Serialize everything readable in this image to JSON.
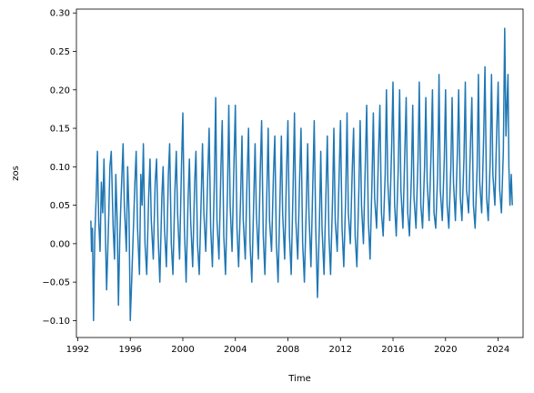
{
  "chart_data": {
    "type": "line",
    "title": "",
    "xlabel": "Time",
    "ylabel": "zos",
    "xlim": [
      1991.9,
      2025.9
    ],
    "ylim": [
      -0.122,
      0.305
    ],
    "grid": false,
    "x_ticks": [
      1992,
      1996,
      2000,
      2004,
      2008,
      2012,
      2016,
      2020,
      2024
    ],
    "y_ticks": [
      -0.1,
      -0.05,
      0.0,
      0.05,
      0.1,
      0.15,
      0.2,
      0.25,
      0.3
    ],
    "x_tick_labels": [
      "1992",
      "1996",
      "2000",
      "2004",
      "2008",
      "2012",
      "2016",
      "2020",
      "2024"
    ],
    "y_tick_labels": [
      "−0.10",
      "−0.05",
      "0.00",
      "0.05",
      "0.10",
      "0.15",
      "0.20",
      "0.25",
      "0.30"
    ],
    "colors": {
      "series": "#1f77b4"
    },
    "series": [
      {
        "x": [
          1993.0,
          1993.05,
          1993.12,
          1993.2,
          1993.3,
          1993.4,
          1993.5,
          1993.6,
          1993.7,
          1993.8,
          1993.9,
          1994.0,
          1994.12,
          1994.2,
          1994.35,
          1994.45,
          1994.55,
          1994.7,
          1994.8,
          1994.9,
          1995.0,
          1995.1,
          1995.2,
          1995.3,
          1995.45,
          1995.55,
          1995.7,
          1995.8,
          1995.9,
          1996.0,
          1996.1,
          1996.2,
          1996.35,
          1996.45,
          1996.55,
          1996.7,
          1996.8,
          1996.9,
          1997.0,
          1997.12,
          1997.25,
          1997.4,
          1997.5,
          1997.6,
          1997.75,
          1997.9,
          1998.0,
          1998.12,
          1998.25,
          1998.4,
          1998.5,
          1998.6,
          1998.75,
          1998.9,
          1999.0,
          1999.12,
          1999.25,
          1999.4,
          1999.5,
          1999.6,
          1999.75,
          1999.9,
          2000.0,
          2000.12,
          2000.25,
          2000.4,
          2000.5,
          2000.6,
          2000.75,
          2000.9,
          2001.0,
          2001.12,
          2001.25,
          2001.4,
          2001.5,
          2001.6,
          2001.75,
          2001.9,
          2002.0,
          2002.12,
          2002.25,
          2002.4,
          2002.5,
          2002.6,
          2002.75,
          2002.9,
          2003.0,
          2003.12,
          2003.25,
          2003.4,
          2003.5,
          2003.6,
          2003.75,
          2003.9,
          2004.0,
          2004.12,
          2004.25,
          2004.4,
          2004.5,
          2004.6,
          2004.75,
          2004.9,
          2005.0,
          2005.12,
          2005.25,
          2005.4,
          2005.5,
          2005.6,
          2005.75,
          2005.9,
          2006.0,
          2006.12,
          2006.25,
          2006.4,
          2006.5,
          2006.6,
          2006.75,
          2006.9,
          2007.0,
          2007.12,
          2007.25,
          2007.4,
          2007.5,
          2007.6,
          2007.75,
          2007.9,
          2008.0,
          2008.12,
          2008.25,
          2008.4,
          2008.5,
          2008.6,
          2008.75,
          2008.9,
          2009.0,
          2009.12,
          2009.25,
          2009.4,
          2009.5,
          2009.6,
          2009.75,
          2009.9,
          2010.0,
          2010.12,
          2010.25,
          2010.4,
          2010.5,
          2010.6,
          2010.75,
          2010.9,
          2011.0,
          2011.12,
          2011.25,
          2011.4,
          2011.5,
          2011.6,
          2011.75,
          2011.9,
          2012.0,
          2012.12,
          2012.25,
          2012.4,
          2012.5,
          2012.6,
          2012.75,
          2012.9,
          2013.0,
          2013.12,
          2013.25,
          2013.4,
          2013.5,
          2013.6,
          2013.75,
          2013.9,
          2014.0,
          2014.12,
          2014.25,
          2014.4,
          2014.5,
          2014.6,
          2014.75,
          2014.9,
          2015.0,
          2015.12,
          2015.25,
          2015.4,
          2015.5,
          2015.6,
          2015.75,
          2015.9,
          2016.0,
          2016.12,
          2016.25,
          2016.4,
          2016.5,
          2016.6,
          2016.75,
          2016.9,
          2017.0,
          2017.12,
          2017.25,
          2017.4,
          2017.5,
          2017.6,
          2017.75,
          2017.9,
          2018.0,
          2018.12,
          2018.25,
          2018.4,
          2018.5,
          2018.6,
          2018.75,
          2018.9,
          2019.0,
          2019.12,
          2019.25,
          2019.4,
          2019.5,
          2019.6,
          2019.75,
          2019.9,
          2020.0,
          2020.12,
          2020.25,
          2020.4,
          2020.5,
          2020.6,
          2020.75,
          2020.9,
          2021.0,
          2021.12,
          2021.25,
          2021.4,
          2021.5,
          2021.6,
          2021.75,
          2021.9,
          2022.0,
          2022.12,
          2022.25,
          2022.4,
          2022.5,
          2022.6,
          2022.75,
          2022.9,
          2023.0,
          2023.12,
          2023.25,
          2023.4,
          2023.5,
          2023.6,
          2023.75,
          2023.9,
          2024.0,
          2024.12,
          2024.25,
          2024.4,
          2024.5,
          2024.6,
          2024.75,
          2024.82,
          2024.9,
          2025.0,
          2025.08
        ],
        "y": [
          0.03,
          -0.01,
          0.02,
          -0.1,
          0.01,
          0.06,
          0.12,
          0.03,
          -0.01,
          0.08,
          0.04,
          0.11,
          0.0,
          -0.06,
          0.03,
          0.1,
          0.12,
          0.02,
          -0.02,
          0.09,
          0.03,
          -0.08,
          0.01,
          0.06,
          0.13,
          0.05,
          -0.01,
          0.1,
          0.04,
          -0.1,
          -0.05,
          0.0,
          0.08,
          0.12,
          0.02,
          -0.04,
          0.09,
          0.05,
          0.13,
          0.0,
          -0.04,
          0.06,
          0.11,
          0.03,
          -0.02,
          0.08,
          0.11,
          0.01,
          -0.05,
          0.06,
          0.1,
          0.02,
          -0.03,
          0.09,
          0.13,
          0.0,
          -0.04,
          0.07,
          0.12,
          0.04,
          -0.02,
          0.1,
          0.17,
          0.02,
          -0.05,
          0.06,
          0.11,
          0.03,
          -0.03,
          0.08,
          0.12,
          0.0,
          -0.04,
          0.06,
          0.13,
          0.04,
          -0.01,
          0.09,
          0.15,
          0.02,
          -0.03,
          0.08,
          0.19,
          0.03,
          -0.02,
          0.1,
          0.16,
          0.01,
          -0.04,
          0.07,
          0.18,
          0.05,
          -0.01,
          0.11,
          0.18,
          0.02,
          -0.03,
          0.06,
          0.14,
          0.03,
          -0.02,
          0.09,
          0.15,
          0.0,
          -0.05,
          0.06,
          0.13,
          0.04,
          -0.02,
          0.1,
          0.16,
          0.01,
          -0.04,
          0.07,
          0.15,
          0.03,
          -0.01,
          0.09,
          0.14,
          0.0,
          -0.05,
          0.06,
          0.14,
          0.04,
          -0.02,
          0.1,
          0.16,
          0.01,
          -0.04,
          0.08,
          0.17,
          0.03,
          -0.02,
          0.09,
          0.15,
          0.0,
          -0.05,
          0.05,
          0.13,
          0.04,
          -0.03,
          0.08,
          0.16,
          0.02,
          -0.07,
          0.03,
          0.12,
          0.02,
          -0.04,
          0.07,
          0.14,
          0.01,
          -0.04,
          0.06,
          0.15,
          0.03,
          -0.01,
          0.09,
          0.16,
          0.02,
          -0.03,
          0.06,
          0.17,
          0.04,
          0.0,
          0.1,
          0.15,
          0.01,
          -0.03,
          0.07,
          0.16,
          0.05,
          0.0,
          0.11,
          0.18,
          0.03,
          -0.02,
          0.08,
          0.17,
          0.06,
          0.02,
          0.12,
          0.18,
          0.04,
          0.01,
          0.09,
          0.2,
          0.08,
          0.03,
          0.13,
          0.21,
          0.05,
          0.01,
          0.1,
          0.2,
          0.07,
          0.02,
          0.12,
          0.19,
          0.04,
          0.01,
          0.09,
          0.18,
          0.06,
          0.02,
          0.11,
          0.21,
          0.05,
          0.02,
          0.1,
          0.19,
          0.08,
          0.03,
          0.12,
          0.2,
          0.04,
          0.02,
          0.09,
          0.22,
          0.07,
          0.03,
          0.11,
          0.2,
          0.05,
          0.02,
          0.1,
          0.19,
          0.08,
          0.03,
          0.12,
          0.2,
          0.06,
          0.03,
          0.11,
          0.21,
          0.07,
          0.04,
          0.13,
          0.19,
          0.05,
          0.02,
          0.1,
          0.22,
          0.08,
          0.04,
          0.14,
          0.23,
          0.06,
          0.03,
          0.11,
          0.22,
          0.09,
          0.05,
          0.15,
          0.21,
          0.07,
          0.04,
          0.12,
          0.28,
          0.14,
          0.22,
          0.1,
          0.05,
          0.09,
          0.05
        ]
      }
    ]
  }
}
